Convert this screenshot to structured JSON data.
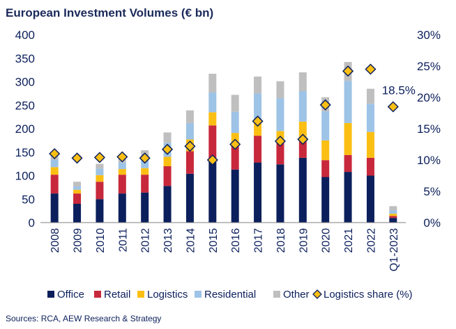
{
  "chart_data": {
    "type": "bar",
    "stacked": true,
    "title": "European Investment Volumes (€ bn)",
    "source": "Sources: RCA, AEW Research & Strategy",
    "categories": [
      "2008",
      "2009",
      "2010",
      "2011",
      "2012",
      "2013",
      "2014",
      "2015",
      "2016",
      "2017",
      "2018",
      "2019",
      "2020",
      "2021",
      "2022",
      "Q1-2023"
    ],
    "series": [
      {
        "name": "Office",
        "color": "#0b1f5c",
        "values": [
          62,
          40,
          50,
          62,
          64,
          78,
          104,
          130,
          113,
          128,
          124,
          138,
          97,
          108,
          100,
          10
        ]
      },
      {
        "name": "Retail",
        "color": "#c8283c",
        "values": [
          40,
          22,
          37,
          40,
          38,
          42,
          48,
          77,
          53,
          57,
          45,
          35,
          36,
          36,
          38,
          4
        ]
      },
      {
        "name": "Logistics",
        "color": "#fbbf14",
        "values": [
          16,
          8,
          14,
          12,
          14,
          20,
          25,
          28,
          25,
          32,
          26,
          42,
          42,
          68,
          55,
          5
        ]
      },
      {
        "name": "Residential",
        "color": "#9dc3e6",
        "values": [
          16,
          7,
          14,
          14,
          16,
          30,
          35,
          42,
          45,
          58,
          70,
          65,
          62,
          90,
          60,
          7
        ]
      },
      {
        "name": "Other",
        "color": "#bfbfbf",
        "values": [
          10,
          10,
          10,
          10,
          22,
          22,
          27,
          40,
          36,
          36,
          36,
          40,
          30,
          40,
          32,
          9
        ]
      }
    ],
    "line_series": {
      "name": "Logistics share (%)",
      "axis": "right",
      "marker": "diamond",
      "color": "#fbbf14",
      "edge_color": "#0b1f5c",
      "values": [
        11.0,
        10.3,
        10.4,
        10.5,
        10.3,
        11.7,
        12.2,
        10.0,
        12.5,
        16.2,
        13.0,
        13.3,
        18.8,
        24.2,
        24.5,
        18.5
      ]
    },
    "annotation": {
      "text": "18.5%",
      "category": "Q1-2023"
    },
    "ylim": [
      0,
      400
    ],
    "yticks": [
      0,
      50,
      100,
      150,
      200,
      250,
      300,
      350,
      400
    ],
    "y2lim": [
      0,
      30
    ],
    "y2ticks": [
      "0%",
      "5%",
      "10%",
      "15%",
      "20%",
      "25%",
      "30%"
    ],
    "xlabel": "",
    "ylabel": "",
    "grid": false,
    "legend_position": "bottom"
  }
}
